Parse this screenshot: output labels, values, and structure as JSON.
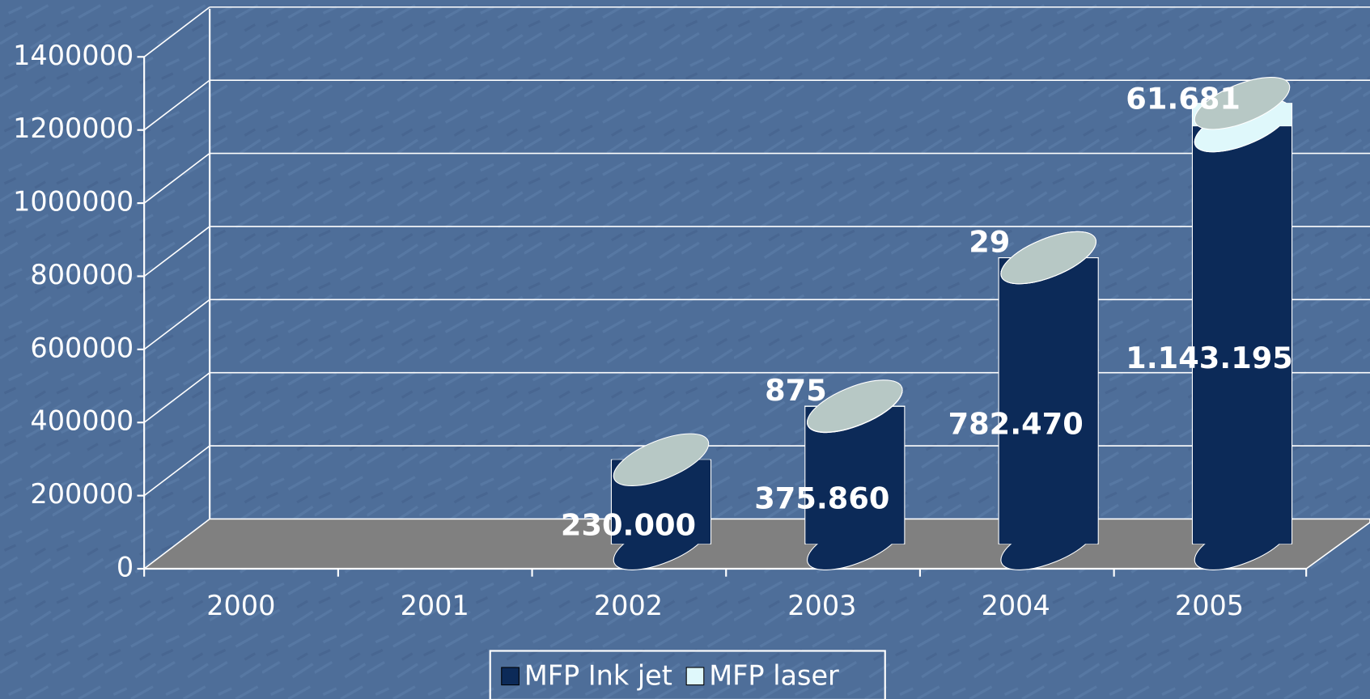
{
  "chart_data": {
    "type": "bar",
    "categories": [
      "2000",
      "2001",
      "2002",
      "2003",
      "2004",
      "2005"
    ],
    "series": [
      {
        "name": "MFP Ink jet",
        "color": "#0c2a58",
        "values": [
          null,
          null,
          230000,
          375860,
          782470,
          1143195
        ],
        "value_labels": [
          null,
          null,
          "230.000",
          "375.860",
          "782.470",
          "1.143.195"
        ]
      },
      {
        "name": "MFP laser",
        "color": "#dff8fb",
        "values": [
          null,
          null,
          null,
          875,
          29,
          61681
        ],
        "value_labels": [
          null,
          null,
          null,
          "875",
          "29",
          "61.681"
        ]
      }
    ],
    "stacked": true,
    "ylim": [
      0,
      1400000
    ],
    "yticks": [
      0,
      200000,
      400000,
      600000,
      800000,
      1000000,
      1200000,
      1400000
    ],
    "grid": true,
    "legend": "bottom"
  }
}
